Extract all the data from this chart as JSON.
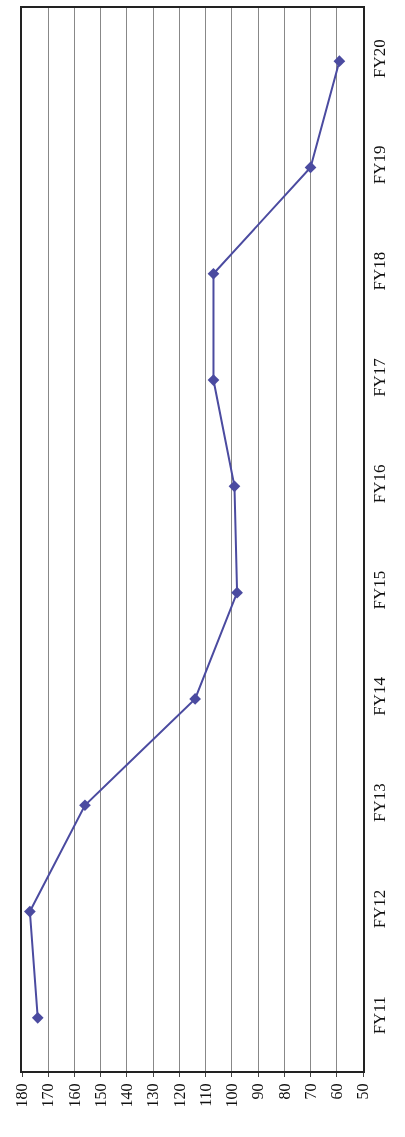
{
  "chart_data": {
    "type": "line",
    "orientation": "horizontal",
    "categories": [
      "FY20",
      "FY19",
      "FY18",
      "FY17",
      "FY16",
      "FY15",
      "FY14",
      "FY13",
      "FY12",
      "FY11"
    ],
    "values": [
      59,
      70,
      107,
      107,
      99,
      98,
      114,
      156,
      177,
      174
    ],
    "color": "#4b4ba0",
    "marker": "diamond",
    "line_style": "solid",
    "grid": "x",
    "xlim": [
      180,
      50
    ],
    "xticks": [
      180,
      170,
      160,
      150,
      140,
      130,
      120,
      110,
      100,
      90,
      80,
      70,
      60,
      50
    ]
  }
}
